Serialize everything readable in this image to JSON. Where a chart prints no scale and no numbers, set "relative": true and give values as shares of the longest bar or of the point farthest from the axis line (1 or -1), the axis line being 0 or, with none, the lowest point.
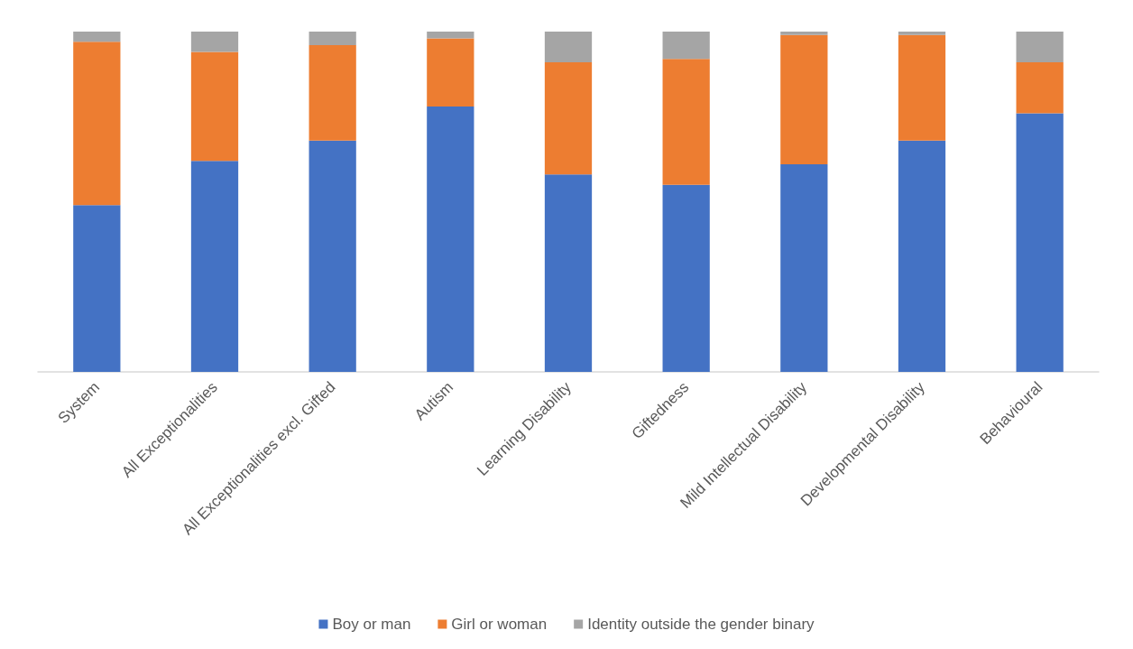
{
  "chart_data": {
    "type": "bar",
    "stacked": true,
    "relative": true,
    "legend": "bottom",
    "categories": [
      "System",
      "All Exceptionalities",
      "All Exceptionalities excl. Gifted",
      "Autism",
      "Learning Disability",
      "Giftedness",
      "Mild Intellectual Disability",
      "Developmental Disability",
      "Behavioural"
    ],
    "series": [
      {
        "name": "Boy or man",
        "color": "#4472c4",
        "values": [
          0.49,
          0.62,
          0.68,
          0.78,
          0.58,
          0.55,
          0.61,
          0.68,
          0.76
        ]
      },
      {
        "name": "Girl or woman",
        "color": "#ed7d31",
        "values": [
          0.48,
          0.32,
          0.28,
          0.2,
          0.33,
          0.37,
          0.38,
          0.31,
          0.15
        ]
      },
      {
        "name": "Identity outside the gender binary",
        "color": "#a5a5a5",
        "values": [
          0.03,
          0.06,
          0.04,
          0.02,
          0.09,
          0.08,
          0.01,
          0.01,
          0.09
        ]
      }
    ]
  }
}
